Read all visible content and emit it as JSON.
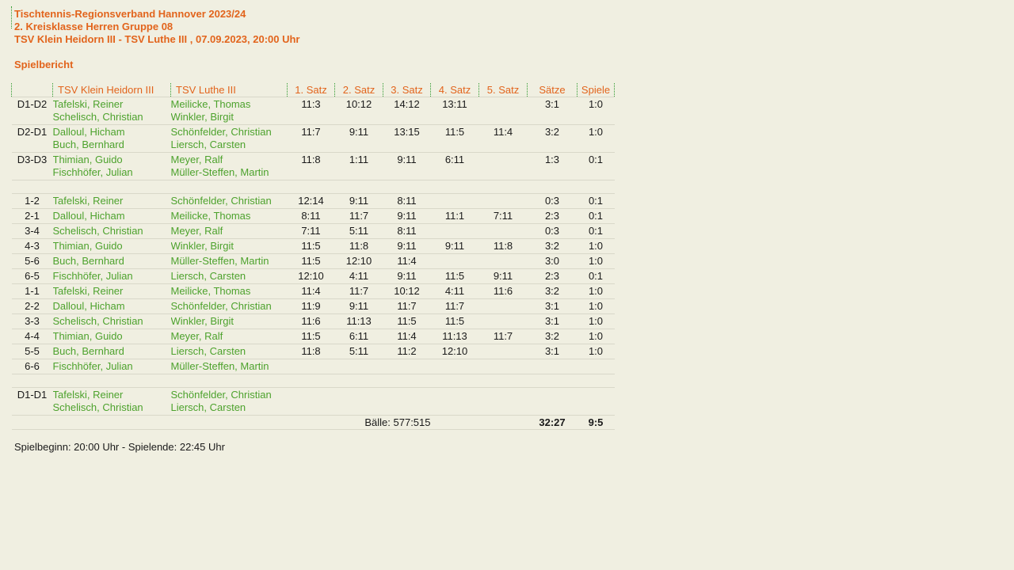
{
  "colors": {
    "background": "#f0efe1",
    "accent_orange": "#e2641c",
    "player_green": "#4da22d",
    "grid_line": "#d9d8c9",
    "dotted_green": "#2e9a2e",
    "text_black": "#1a1a1a"
  },
  "header": {
    "line1": "Tischtennis-Regionsverband Hannover 2023/24",
    "line2": "2. Kreisklasse Herren Gruppe 08",
    "line3": "TSV Klein Heidorn III - TSV Luthe III , 07.09.2023, 20:00 Uhr",
    "section_title": "Spielbericht"
  },
  "table": {
    "columns": {
      "id": "",
      "home": "TSV Klein Heidorn III",
      "away": "TSV Luthe III",
      "set1": "1. Satz",
      "set2": "2. Satz",
      "set3": "3. Satz",
      "set4": "4. Satz",
      "set5": "5. Satz",
      "saetze": "Sätze",
      "spiele": "Spiele"
    },
    "rows": [
      {
        "type": "double",
        "id": "D1-D2",
        "home": [
          "Tafelski, Reiner",
          "Schelisch, Christian"
        ],
        "away": [
          "Meilicke, Thomas",
          "Winkler, Birgit"
        ],
        "sets": [
          "11:3",
          "10:12",
          "14:12",
          "13:11",
          ""
        ],
        "saetze": "3:1",
        "spiele": "1:0"
      },
      {
        "type": "double",
        "id": "D2-D1",
        "home": [
          "Dalloul, Hicham",
          "Buch, Bernhard"
        ],
        "away": [
          "Schönfelder, Christian",
          "Liersch, Carsten"
        ],
        "sets": [
          "11:7",
          "9:11",
          "13:15",
          "11:5",
          "11:4"
        ],
        "saetze": "3:2",
        "spiele": "1:0"
      },
      {
        "type": "double",
        "id": "D3-D3",
        "home": [
          "Thimian, Guido",
          "Fischhöfer, Julian"
        ],
        "away": [
          "Meyer, Ralf",
          "Müller-Steffen, Martin"
        ],
        "sets": [
          "11:8",
          "1:11",
          "9:11",
          "6:11",
          ""
        ],
        "saetze": "1:3",
        "spiele": "0:1"
      },
      {
        "type": "spacer"
      },
      {
        "type": "single",
        "id": "1-2",
        "home": [
          "Tafelski, Reiner"
        ],
        "away": [
          "Schönfelder, Christian"
        ],
        "sets": [
          "12:14",
          "9:11",
          "8:11",
          "",
          ""
        ],
        "saetze": "0:3",
        "spiele": "0:1"
      },
      {
        "type": "single",
        "id": "2-1",
        "home": [
          "Dalloul, Hicham"
        ],
        "away": [
          "Meilicke, Thomas"
        ],
        "sets": [
          "8:11",
          "11:7",
          "9:11",
          "11:1",
          "7:11"
        ],
        "saetze": "2:3",
        "spiele": "0:1"
      },
      {
        "type": "single",
        "id": "3-4",
        "home": [
          "Schelisch, Christian"
        ],
        "away": [
          "Meyer, Ralf"
        ],
        "sets": [
          "7:11",
          "5:11",
          "8:11",
          "",
          ""
        ],
        "saetze": "0:3",
        "spiele": "0:1"
      },
      {
        "type": "single",
        "id": "4-3",
        "home": [
          "Thimian, Guido"
        ],
        "away": [
          "Winkler, Birgit"
        ],
        "sets": [
          "11:5",
          "11:8",
          "9:11",
          "9:11",
          "11:8"
        ],
        "saetze": "3:2",
        "spiele": "1:0"
      },
      {
        "type": "single",
        "id": "5-6",
        "home": [
          "Buch, Bernhard"
        ],
        "away": [
          "Müller-Steffen, Martin"
        ],
        "sets": [
          "11:5",
          "12:10",
          "11:4",
          "",
          ""
        ],
        "saetze": "3:0",
        "spiele": "1:0"
      },
      {
        "type": "single",
        "id": "6-5",
        "home": [
          "Fischhöfer, Julian"
        ],
        "away": [
          "Liersch, Carsten"
        ],
        "sets": [
          "12:10",
          "4:11",
          "9:11",
          "11:5",
          "9:11"
        ],
        "saetze": "2:3",
        "spiele": "0:1"
      },
      {
        "type": "single",
        "id": "1-1",
        "home": [
          "Tafelski, Reiner"
        ],
        "away": [
          "Meilicke, Thomas"
        ],
        "sets": [
          "11:4",
          "11:7",
          "10:12",
          "4:11",
          "11:6"
        ],
        "saetze": "3:2",
        "spiele": "1:0"
      },
      {
        "type": "single",
        "id": "2-2",
        "home": [
          "Dalloul, Hicham"
        ],
        "away": [
          "Schönfelder, Christian"
        ],
        "sets": [
          "11:9",
          "9:11",
          "11:7",
          "11:7",
          ""
        ],
        "saetze": "3:1",
        "spiele": "1:0"
      },
      {
        "type": "single",
        "id": "3-3",
        "home": [
          "Schelisch, Christian"
        ],
        "away": [
          "Winkler, Birgit"
        ],
        "sets": [
          "11:6",
          "11:13",
          "11:5",
          "11:5",
          ""
        ],
        "saetze": "3:1",
        "spiele": "1:0"
      },
      {
        "type": "single",
        "id": "4-4",
        "home": [
          "Thimian, Guido"
        ],
        "away": [
          "Meyer, Ralf"
        ],
        "sets": [
          "11:5",
          "6:11",
          "11:4",
          "11:13",
          "11:7"
        ],
        "saetze": "3:2",
        "spiele": "1:0"
      },
      {
        "type": "single",
        "id": "5-5",
        "home": [
          "Buch, Bernhard"
        ],
        "away": [
          "Liersch, Carsten"
        ],
        "sets": [
          "11:8",
          "5:11",
          "11:2",
          "12:10",
          ""
        ],
        "saetze": "3:1",
        "spiele": "1:0"
      },
      {
        "type": "single",
        "id": "6-6",
        "home": [
          "Fischhöfer, Julian"
        ],
        "away": [
          "Müller-Steffen, Martin"
        ],
        "sets": [
          "",
          "",
          "",
          "",
          ""
        ],
        "saetze": "",
        "spiele": ""
      },
      {
        "type": "spacer"
      },
      {
        "type": "double",
        "id": "D1-D1",
        "home": [
          "Tafelski, Reiner",
          "Schelisch, Christian"
        ],
        "away": [
          "Schönfelder, Christian",
          "Liersch, Carsten"
        ],
        "sets": [
          "",
          "",
          "",
          "",
          ""
        ],
        "saetze": "",
        "spiele": ""
      }
    ]
  },
  "totals": {
    "balls": "Bälle: 577:515",
    "saetze": "32:27",
    "spiele": "9:5"
  },
  "footer": {
    "times": "Spielbeginn: 20:00 Uhr - Spielende: 22:45 Uhr"
  }
}
